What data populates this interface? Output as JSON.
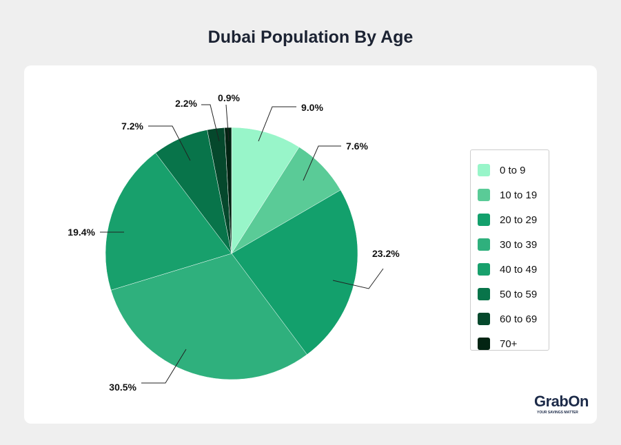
{
  "chart_data": {
    "type": "pie",
    "title": "Dubai Population By Age",
    "legend_position": "right",
    "slices": [
      {
        "label": "0 to 9",
        "value": 9.0,
        "display": "9.0%",
        "color": "#98f5c9"
      },
      {
        "label": "10 to 19",
        "value": 7.6,
        "display": "7.6%",
        "color": "#5acb97"
      },
      {
        "label": "20 to 29",
        "value": 23.2,
        "display": "23.2%",
        "color": "#13a06c"
      },
      {
        "label": "30 to 39",
        "value": 30.5,
        "display": "30.5%",
        "color": "#2fb07d"
      },
      {
        "label": "40 to 49",
        "value": 19.4,
        "display": "19.4%",
        "color": "#18a06c"
      },
      {
        "label": "50 to 59",
        "value": 7.2,
        "display": "7.2%",
        "color": "#08744a"
      },
      {
        "label": "60 to 69",
        "value": 2.2,
        "display": "2.2%",
        "color": "#05482c"
      },
      {
        "label": "70+",
        "value": 0.9,
        "display": "0.9%",
        "color": "#032413"
      }
    ]
  },
  "logo": {
    "name": "GrabOn",
    "tagline": "YOUR SAVINGS MATTER"
  }
}
